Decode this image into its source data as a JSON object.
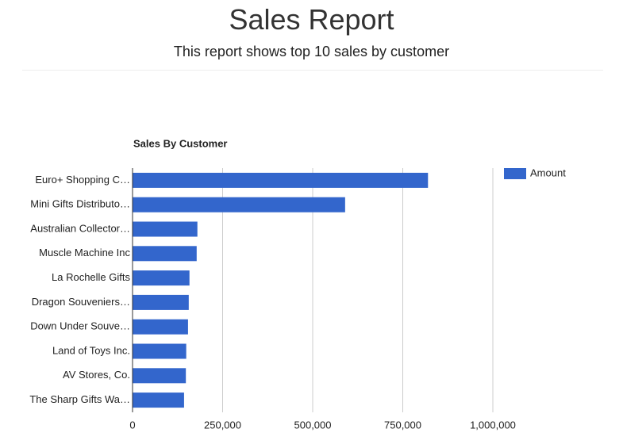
{
  "page": {
    "title": "Sales Report",
    "subtitle": "This report shows top 10 sales by customer"
  },
  "chart_data": {
    "type": "bar",
    "orientation": "horizontal",
    "title": "Sales By Customer",
    "categories": [
      "Euro+ Shopping C…",
      "Mini Gifts Distributo…",
      "Australian Collector…",
      "Muscle Machine Inc",
      "La Rochelle Gifts",
      "Dragon Souveniers…",
      "Down Under Souve…",
      "Land of Toys Inc.",
      "AV Stores, Co.",
      "The Sharp Gifts Wa…"
    ],
    "series": [
      {
        "name": "Amount",
        "color": "#3366cc",
        "values": [
          820000,
          590000,
          180000,
          178000,
          158000,
          156000,
          154000,
          149000,
          148000,
          143000
        ]
      }
    ],
    "xlim": [
      0,
      1000000
    ],
    "xticks": [
      0,
      {
        "value": 250000,
        "label": "250,000"
      },
      {
        "value": 500000,
        "label": "500,000"
      },
      {
        "value": 750000,
        "label": "750,000"
      },
      {
        "value": 1000000,
        "label": "1,000,000"
      }
    ],
    "grid": true,
    "legend": "right"
  }
}
